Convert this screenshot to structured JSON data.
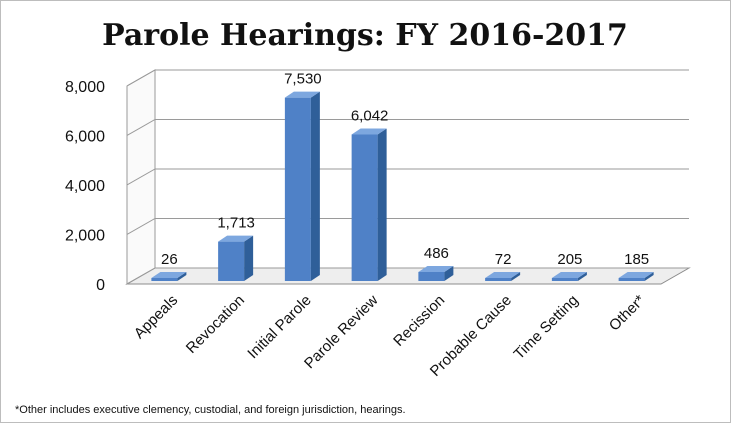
{
  "chart_data": {
    "type": "bar",
    "title": "Parole Hearings: FY 2016-2017",
    "categories": [
      "Appeals",
      "Revocation",
      "Initial Parole",
      "Parole Review",
      "Recission",
      "Probable Cause",
      "Time Setting",
      "Other*"
    ],
    "values": [
      26,
      1713,
      7530,
      6042,
      486,
      72,
      205,
      185
    ],
    "data_labels": [
      "26",
      "1,713",
      "7,530",
      "6,042",
      "486",
      "72",
      "205",
      "185"
    ],
    "yticks": [
      "0",
      "2,000",
      "4,000",
      "6,000",
      "8,000"
    ],
    "ytick_values": [
      0,
      2000,
      4000,
      6000,
      8000
    ],
    "ylim": [
      0,
      8000
    ],
    "grid": true,
    "legend": "none",
    "style": "3d-column",
    "bar_color": "#4f81c7",
    "bar_side_color": "#2f5f99",
    "bar_top_color": "#7da7df",
    "footnote": "*Other includes executive clemency, custodial, and  foreign jurisdiction, hearings."
  }
}
